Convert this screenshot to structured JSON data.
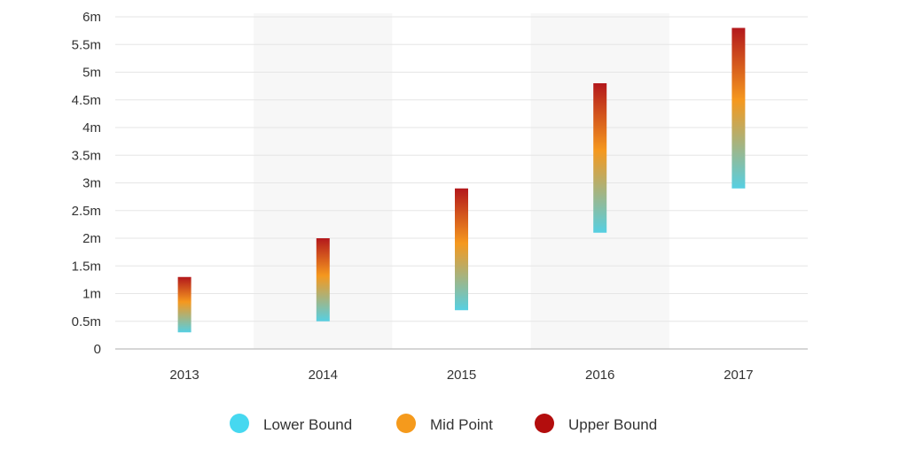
{
  "chart_data": {
    "type": "range-bar",
    "categories": [
      "2013",
      "2014",
      "2015",
      "2016",
      "2017"
    ],
    "ranges": [
      {
        "low": 0.3,
        "high": 1.3
      },
      {
        "low": 0.5,
        "high": 2.0
      },
      {
        "low": 0.7,
        "high": 2.9
      },
      {
        "low": 2.1,
        "high": 4.8
      },
      {
        "low": 2.9,
        "high": 5.8
      }
    ],
    "ylim": [
      0,
      6
    ],
    "y_ticks": [
      "0",
      "0.5m",
      "1m",
      "1.5m",
      "2m",
      "2.5m",
      "3m",
      "3.5m",
      "4m",
      "4.5m",
      "5m",
      "5.5m",
      "6m"
    ],
    "y_tick_values": [
      0,
      0.5,
      1,
      1.5,
      2,
      2.5,
      3,
      3.5,
      4,
      4.5,
      5,
      5.5,
      6
    ],
    "grid": true,
    "alternating_column_shading": true,
    "legend": {
      "position": "bottom-center",
      "items": [
        {
          "label": "Lower Bound",
          "color": "#46d8f0"
        },
        {
          "label": "Mid Point",
          "color": "#f59a1c"
        },
        {
          "label": "Upper Bound",
          "color": "#b30d0d"
        }
      ]
    },
    "gradient_colors": [
      "#56cfe2",
      "#f5981e",
      "#b3181c"
    ]
  }
}
